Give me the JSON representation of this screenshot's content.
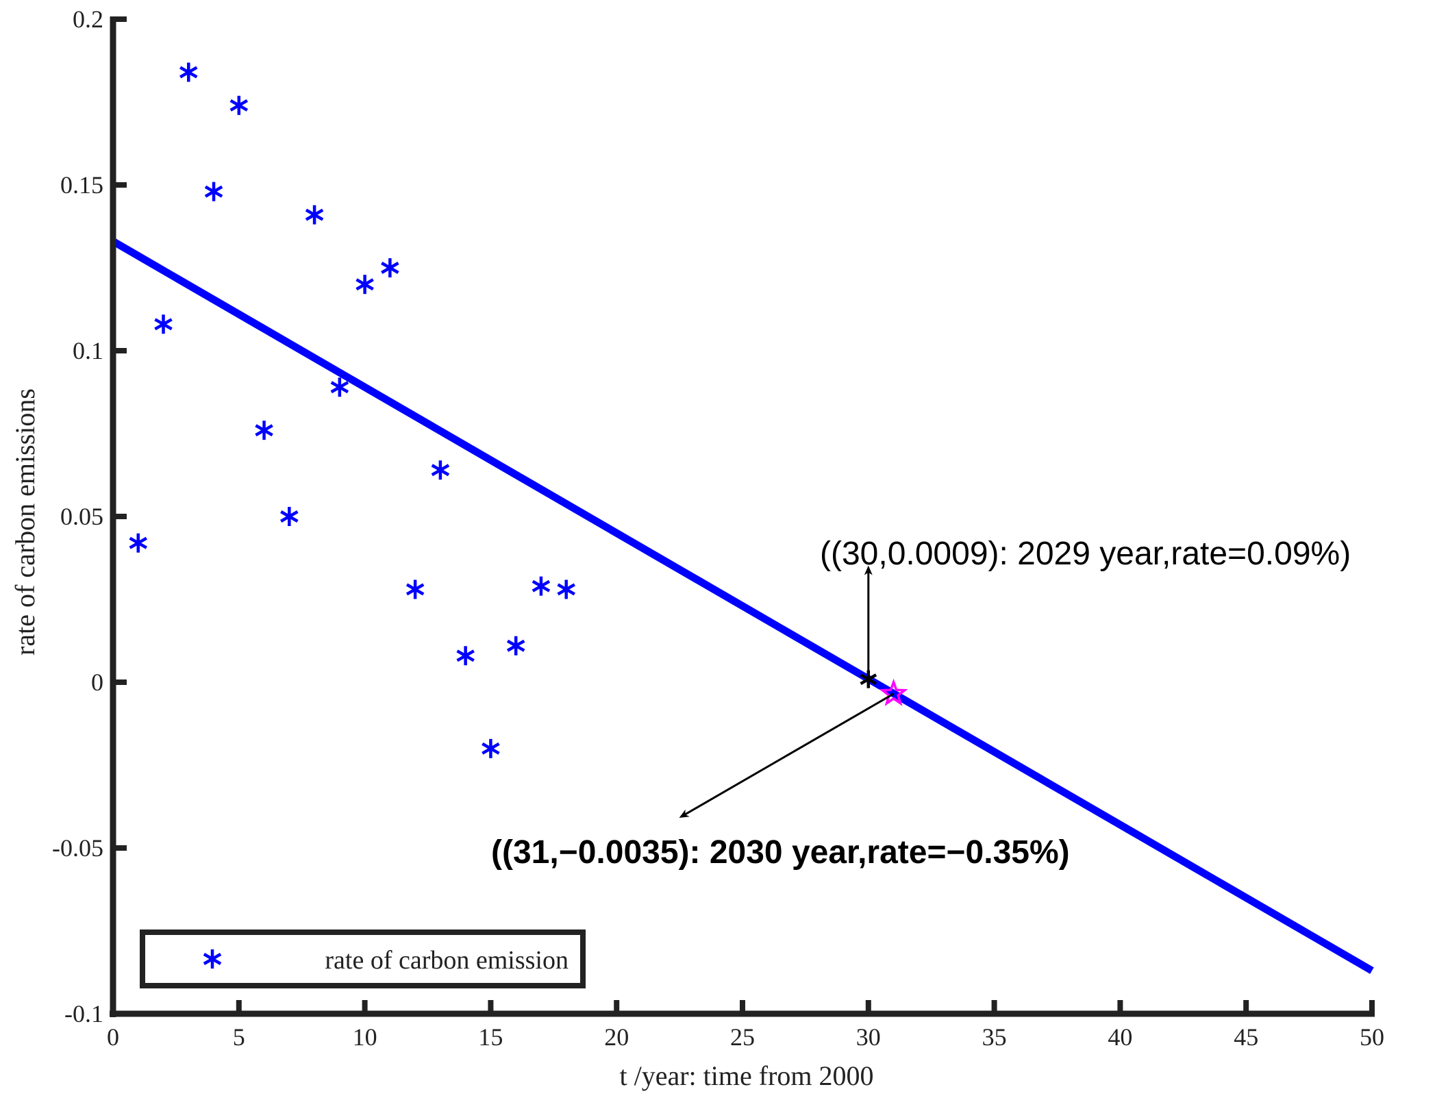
{
  "chart_data": {
    "type": "scatter",
    "xlabel": "t /year: time from 2000",
    "ylabel": "rate of carbon emissions",
    "xlim": [
      0,
      50
    ],
    "ylim": [
      -0.1,
      0.2
    ],
    "x_ticks": [
      "0",
      "5",
      "10",
      "15",
      "20",
      "25",
      "30",
      "35",
      "40",
      "45",
      "50"
    ],
    "y_ticks": [
      "-0.1",
      "-0.05",
      "0",
      "0.05",
      "0.1",
      "0.15",
      "0.2"
    ],
    "grid": false,
    "legend_position": "bottom-left",
    "series": [
      {
        "name": "rate of carbon emission",
        "kind": "scatter",
        "marker": "asterisk",
        "color": "#0000ff",
        "x": [
          1,
          2,
          3,
          4,
          5,
          6,
          7,
          8,
          9,
          10,
          11,
          12,
          13,
          14,
          15,
          16,
          17,
          18
        ],
        "y": [
          0.042,
          0.108,
          0.184,
          0.148,
          0.174,
          0.076,
          0.05,
          0.141,
          0.089,
          0.12,
          0.125,
          0.028,
          0.064,
          0.008,
          -0.02,
          0.011,
          0.029,
          0.028
        ]
      },
      {
        "kind": "line",
        "color": "#0000ff",
        "x": [
          0,
          50
        ],
        "y": [
          0.133,
          -0.087
        ]
      }
    ],
    "highlight_points": [
      {
        "x": 30,
        "y": 0.0009,
        "marker": "plus-x",
        "color": "#000000"
      },
      {
        "x": 31,
        "y": -0.0035,
        "marker": "star",
        "color": "#ff00ff"
      }
    ],
    "annotations": [
      {
        "text": "((30,0.0009): 2029 year,rate=0.09%)",
        "target_x": 30,
        "target_y": 0.0009,
        "bold": false
      },
      {
        "text": "((31,−0.0035): 2030 year,rate=−0.35%)",
        "target_x": 31,
        "target_y": -0.0035,
        "bold": true
      }
    ]
  }
}
